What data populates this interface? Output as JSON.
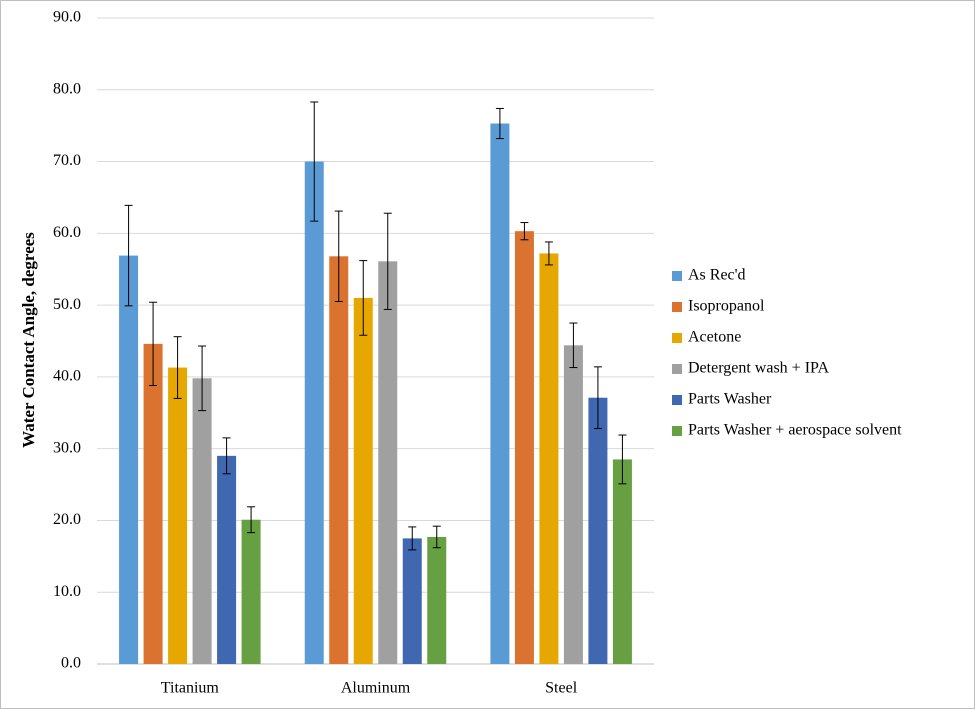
{
  "chart_data": {
    "type": "bar",
    "y_label": "Water Contact Angle, degrees",
    "categories": [
      "Titanium",
      "Aluminum",
      "Steel"
    ],
    "series": [
      {
        "name": "As Rec'd",
        "color": "#5b9bd5",
        "values": [
          56.9,
          70.0,
          75.3
        ],
        "errors": [
          7.0,
          8.3,
          2.1
        ]
      },
      {
        "name": "Isopropanol",
        "color": "#d9732f",
        "values": [
          44.6,
          56.8,
          60.3
        ],
        "errors": [
          5.8,
          6.3,
          1.2
        ]
      },
      {
        "name": "Acetone",
        "color": "#e6a800",
        "values": [
          41.3,
          51.0,
          57.2
        ],
        "errors": [
          4.3,
          5.2,
          1.6
        ]
      },
      {
        "name": "Detergent wash + IPA",
        "color": "#a0a0a0",
        "values": [
          39.8,
          56.1,
          44.4
        ],
        "errors": [
          4.5,
          6.7,
          3.1
        ]
      },
      {
        "name": "Parts Washer",
        "color": "#3f68b0",
        "values": [
          29.0,
          17.5,
          37.1
        ],
        "errors": [
          2.5,
          1.6,
          4.3
        ]
      },
      {
        "name": "Parts Washer + aerospace solvent",
        "color": "#66a043",
        "values": [
          20.1,
          17.7,
          28.5
        ],
        "errors": [
          1.8,
          1.5,
          3.4
        ]
      }
    ],
    "ylim": [
      0,
      90
    ],
    "yticks": [
      {
        "value": 0,
        "label": "0.0"
      },
      {
        "value": 10,
        "label": "10.0"
      },
      {
        "value": 20,
        "label": "20.0"
      },
      {
        "value": 30,
        "label": "30.0"
      },
      {
        "value": 40,
        "label": "40.0"
      },
      {
        "value": 50,
        "label": "50.0"
      },
      {
        "value": 60,
        "label": "60.0"
      },
      {
        "value": 70,
        "label": "70.0"
      },
      {
        "value": 80,
        "label": "80.0"
      },
      {
        "value": 90,
        "label": "90.0"
      }
    ],
    "grid": true,
    "legend": "right"
  }
}
